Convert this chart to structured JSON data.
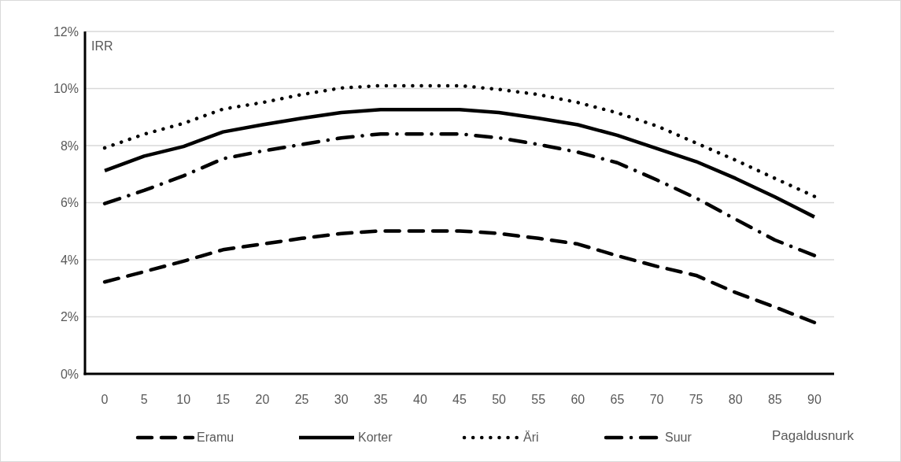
{
  "chart_data": {
    "type": "line",
    "ylabel": "IRR",
    "xlabel": "Pagaldusnurk",
    "categories": [
      "0",
      "5",
      "10",
      "15",
      "20",
      "25",
      "30",
      "35",
      "40",
      "45",
      "50",
      "55",
      "60",
      "65",
      "70",
      "75",
      "80",
      "85",
      "90"
    ],
    "series": [
      {
        "name": "Eramu",
        "color": "#000000",
        "line_style": "dashed",
        "values": [
          3.22,
          3.58,
          3.95,
          4.35,
          4.55,
          4.75,
          4.92,
          5.01,
          5.01,
          5.01,
          4.92,
          4.75,
          4.55,
          4.14,
          3.77,
          3.45,
          2.85,
          2.34,
          1.8
        ]
      },
      {
        "name": "Korter",
        "color": "#000000",
        "line_style": "solid",
        "values": [
          7.12,
          7.63,
          7.97,
          8.48,
          8.73,
          8.96,
          9.16,
          9.26,
          9.26,
          9.26,
          9.16,
          8.96,
          8.73,
          8.36,
          7.9,
          7.44,
          6.85,
          6.2,
          5.5
        ]
      },
      {
        "name": "Äri",
        "color": "#000000",
        "line_style": "dotted",
        "values": [
          7.92,
          8.4,
          8.78,
          9.28,
          9.51,
          9.79,
          10.02,
          10.1,
          10.1,
          10.1,
          9.97,
          9.79,
          9.51,
          9.15,
          8.69,
          8.09,
          7.49,
          6.85,
          6.22
        ]
      },
      {
        "name": "Suur",
        "color": "#000000",
        "line_style": "dashdot",
        "values": [
          5.97,
          6.43,
          6.94,
          7.54,
          7.81,
          8.04,
          8.27,
          8.41,
          8.41,
          8.41,
          8.27,
          8.04,
          7.77,
          7.4,
          6.8,
          6.16,
          5.42,
          4.69,
          4.15
        ]
      }
    ],
    "ylim": [
      0,
      12
    ],
    "yticks": [
      {
        "value": 0,
        "label": "0%"
      },
      {
        "value": 2,
        "label": "2%"
      },
      {
        "value": 4,
        "label": "4%"
      },
      {
        "value": 6,
        "label": "6%"
      },
      {
        "value": 8,
        "label": "8%"
      },
      {
        "value": 10,
        "label": "10%"
      },
      {
        "value": 12,
        "label": "12%"
      }
    ],
    "grid": "y",
    "legend": "bottom",
    "marker": "none"
  }
}
